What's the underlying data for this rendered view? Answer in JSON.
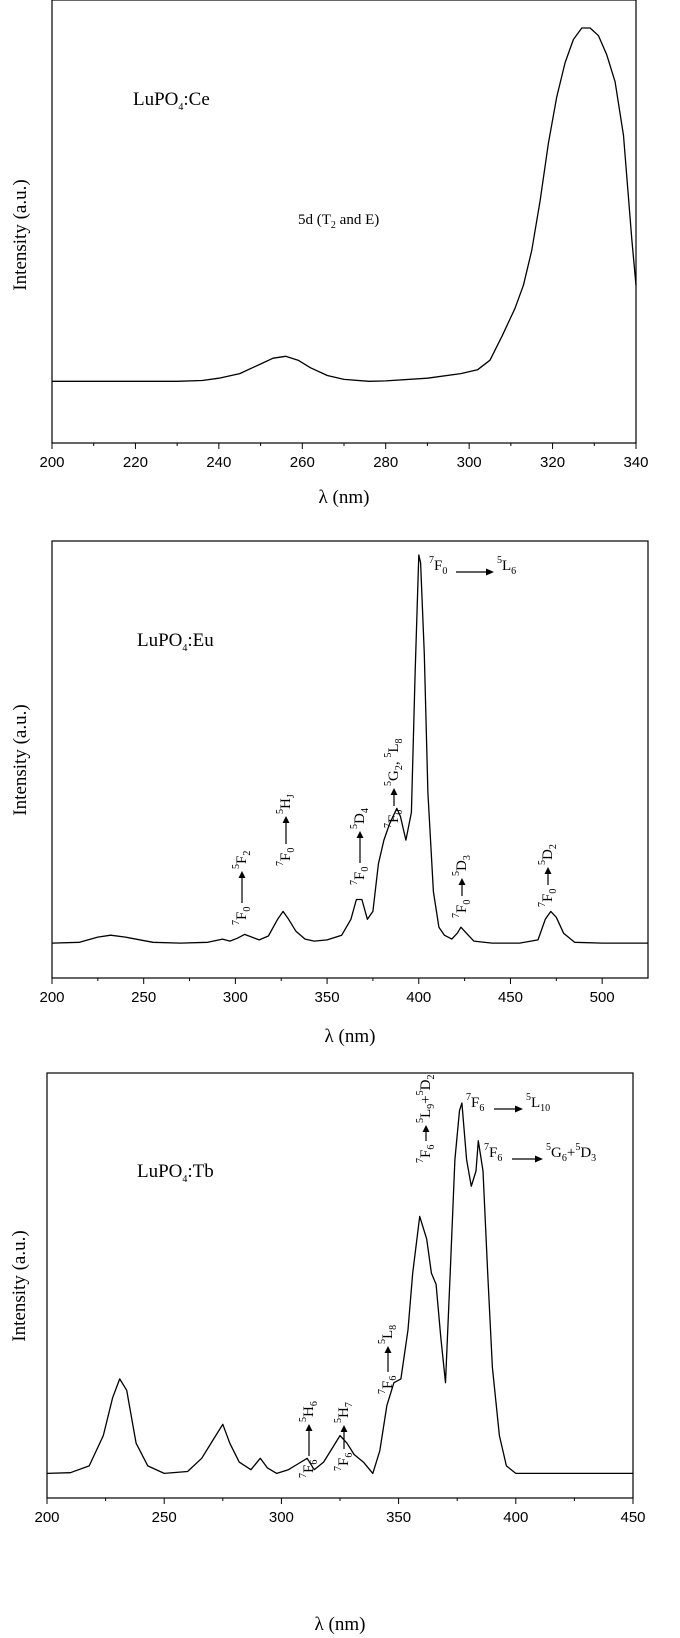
{
  "chart_data": [
    {
      "type": "line",
      "title": "",
      "xlabel": "λ (nm)",
      "ylabel": "Intensity (a.u.)",
      "xlim": [
        200,
        340
      ],
      "ylim": [
        0,
        1.05
      ],
      "xticks": [
        200,
        220,
        240,
        260,
        280,
        300,
        320,
        340
      ],
      "grid": false,
      "legend": "none",
      "series": [
        {
          "x": [
            200,
            210,
            220,
            230,
            236,
            240,
            245,
            250,
            253,
            256,
            259,
            262,
            266,
            270,
            276,
            280,
            290,
            298,
            302,
            305,
            308,
            311,
            313,
            315,
            317,
            319,
            321,
            323,
            325,
            327,
            329,
            331,
            333,
            335,
            337,
            339,
            340
          ],
          "y": [
            0.08,
            0.08,
            0.08,
            0.08,
            0.082,
            0.088,
            0.1,
            0.125,
            0.14,
            0.145,
            0.135,
            0.115,
            0.095,
            0.085,
            0.08,
            0.081,
            0.088,
            0.1,
            0.11,
            0.135,
            0.2,
            0.27,
            0.33,
            0.42,
            0.55,
            0.7,
            0.82,
            0.91,
            0.97,
            1.0,
            1.0,
            0.98,
            0.93,
            0.86,
            0.72,
            0.45,
            0.33
          ]
        }
      ],
      "annotations": [
        {
          "text": "LuPO",
          "sub": "4",
          "after": ":Ce"
        },
        {
          "text": "5d (T",
          "sub": "2",
          "after": " and E)"
        }
      ]
    },
    {
      "type": "line",
      "title": "",
      "xlabel": "λ (nm)",
      "ylabel": "Intensity (a.u.)",
      "xlim": [
        200,
        525
      ],
      "ylim": [
        0,
        1.05
      ],
      "xticks": [
        200,
        250,
        300,
        350,
        400,
        450,
        500
      ],
      "grid": false,
      "legend": "none",
      "series": [
        {
          "x": [
            200,
            215,
            225,
            232,
            240,
            255,
            270,
            285,
            293,
            297,
            301,
            305,
            309,
            313,
            318,
            323,
            326,
            329,
            333,
            338,
            343,
            350,
            358,
            363,
            366,
            369,
            372,
            375,
            378,
            381,
            384,
            388,
            390,
            393,
            396,
            398,
            400,
            401,
            403,
            405,
            408,
            411,
            414,
            418,
            421,
            423,
            426,
            430,
            440,
            455,
            465,
            469,
            472,
            475,
            479,
            485,
            500,
            515,
            525
          ],
          "y": [
            0.02,
            0.022,
            0.035,
            0.04,
            0.035,
            0.022,
            0.02,
            0.022,
            0.03,
            0.025,
            0.032,
            0.042,
            0.035,
            0.028,
            0.038,
            0.08,
            0.1,
            0.08,
            0.05,
            0.03,
            0.025,
            0.028,
            0.04,
            0.08,
            0.13,
            0.13,
            0.08,
            0.1,
            0.22,
            0.28,
            0.32,
            0.36,
            0.34,
            0.28,
            0.35,
            0.7,
            1.0,
            0.98,
            0.75,
            0.4,
            0.15,
            0.06,
            0.04,
            0.03,
            0.045,
            0.06,
            0.045,
            0.025,
            0.02,
            0.02,
            0.028,
            0.08,
            0.1,
            0.085,
            0.045,
            0.022,
            0.02,
            0.02,
            0.02
          ]
        }
      ],
      "annotations": [
        {
          "text": "LuPO",
          "sub": "4",
          "after": ":Eu"
        },
        {
          "from": "7F0",
          "to": "5L6"
        },
        {
          "from": "7F0",
          "to": "5G2, 5L8"
        },
        {
          "from": "7F0",
          "to": "5D4"
        },
        {
          "from": "7F0",
          "to": "5HJ"
        },
        {
          "from": "7F0",
          "to": "5F2"
        },
        {
          "from": "7F0",
          "to": "5D3"
        },
        {
          "from": "7F0",
          "to": "5D2"
        }
      ]
    },
    {
      "type": "line",
      "title": "",
      "xlabel": "λ (nm)",
      "ylabel": "Intensity (a.u.)",
      "xlim": [
        200,
        450
      ],
      "ylim": [
        0,
        1.05
      ],
      "xticks": [
        200,
        250,
        300,
        350,
        400,
        450
      ],
      "grid": false,
      "legend": "none",
      "series": [
        {
          "x": [
            200,
            210,
            218,
            224,
            228,
            231,
            234,
            238,
            243,
            250,
            260,
            266,
            271,
            275,
            278,
            282,
            287,
            291,
            294,
            298,
            303,
            307,
            311,
            314,
            318,
            322,
            325,
            328,
            331,
            335,
            339,
            342,
            345,
            348,
            351,
            354,
            356,
            359,
            362,
            364,
            366,
            368,
            370,
            372,
            374,
            376,
            377,
            379,
            381,
            383,
            384,
            386,
            388,
            390,
            393,
            396,
            400,
            410,
            430,
            450
          ],
          "y": [
            0.02,
            0.022,
            0.04,
            0.12,
            0.22,
            0.27,
            0.24,
            0.1,
            0.04,
            0.02,
            0.025,
            0.06,
            0.11,
            0.15,
            0.1,
            0.05,
            0.03,
            0.06,
            0.035,
            0.02,
            0.03,
            0.045,
            0.06,
            0.03,
            0.05,
            0.09,
            0.12,
            0.1,
            0.07,
            0.05,
            0.02,
            0.08,
            0.2,
            0.26,
            0.27,
            0.4,
            0.55,
            0.7,
            0.64,
            0.55,
            0.52,
            0.38,
            0.26,
            0.55,
            0.85,
            0.98,
            1.0,
            0.85,
            0.78,
            0.82,
            0.9,
            0.82,
            0.55,
            0.3,
            0.12,
            0.04,
            0.02,
            0.02,
            0.02,
            0.02
          ]
        }
      ],
      "annotations": [
        {
          "text": "LuPO",
          "sub": "4",
          "after": ":Tb"
        },
        {
          "from": "7F6",
          "to": "5L10"
        },
        {
          "from": "7F6",
          "to": "5G6+5D3"
        },
        {
          "from": "7F6",
          "to": "5L9+5D2"
        },
        {
          "from": "7F6",
          "to": "5L8"
        },
        {
          "from": "7F6",
          "to": "5H7"
        },
        {
          "from": "7F6",
          "to": "5H6"
        }
      ]
    }
  ],
  "labels": {
    "panel1_title": "LuPO",
    "panel1_title_sub": "4",
    "panel1_title_after": ":Ce",
    "panel1_band": "5d (T",
    "panel1_band_sub": "2",
    "panel1_band_after": " and E)",
    "panel2_title": "LuPO",
    "panel2_title_sub": "4",
    "panel2_title_after": ":Eu",
    "panel3_title": "LuPO",
    "panel3_title_sub": "4",
    "panel3_title_after": ":Tb"
  }
}
